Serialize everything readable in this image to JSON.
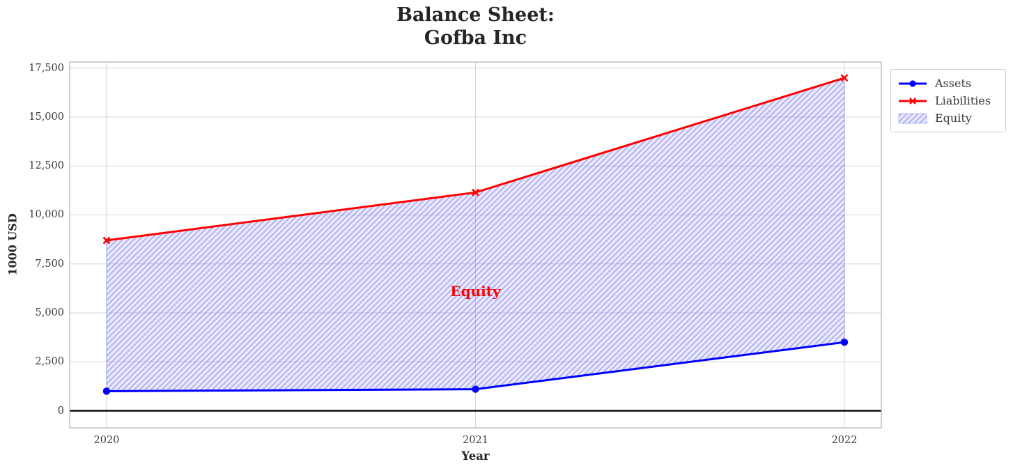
{
  "chart_data": {
    "type": "line",
    "title_lines": [
      "Balance Sheet:",
      "Gofba Inc"
    ],
    "xlabel": "Year",
    "ylabel": "1000 USD",
    "x": [
      2020,
      2021,
      2022
    ],
    "series": [
      {
        "name": "Assets",
        "color": "#0000ff",
        "marker": "circle",
        "values": [
          1000,
          1100,
          3500
        ]
      },
      {
        "name": "Liabilities",
        "color": "#ff0000",
        "marker": "x",
        "values": [
          8700,
          11150,
          17000
        ]
      }
    ],
    "area": {
      "name": "Equity",
      "between": [
        "Assets",
        "Liabilities"
      ],
      "hatch": "/",
      "fill_color": "rgba(100,100,240,0.13)",
      "hatch_color": "rgba(90,90,235,0.38)",
      "edge_color": "rgba(110,110,240,0.45)"
    },
    "annotation": {
      "text": "Equity",
      "x": 2021,
      "y": 6100,
      "color": "#ff0000"
    },
    "legend": {
      "entries": [
        "Assets",
        "Liabilities",
        "Equity"
      ],
      "position": "outside-top-right"
    },
    "xlim": [
      2019.9,
      2022.1
    ],
    "ylim": [
      -870,
      17810
    ],
    "xticks": {
      "values": [
        2020,
        2021,
        2022
      ],
      "labels": [
        "2020",
        "2021",
        "2022"
      ]
    },
    "yticks": {
      "values": [
        0,
        2500,
        5000,
        7500,
        10000,
        12500,
        15000,
        17500
      ],
      "labels": [
        "0",
        "2,500",
        "5,000",
        "7,500",
        "10,000",
        "12,500",
        "15,000",
        "17,500"
      ]
    },
    "grid": true,
    "zero_line": {
      "show": true,
      "color": "#000000"
    },
    "grid_color": "#d6d6d6",
    "spine_color": "#b0b0b0"
  }
}
